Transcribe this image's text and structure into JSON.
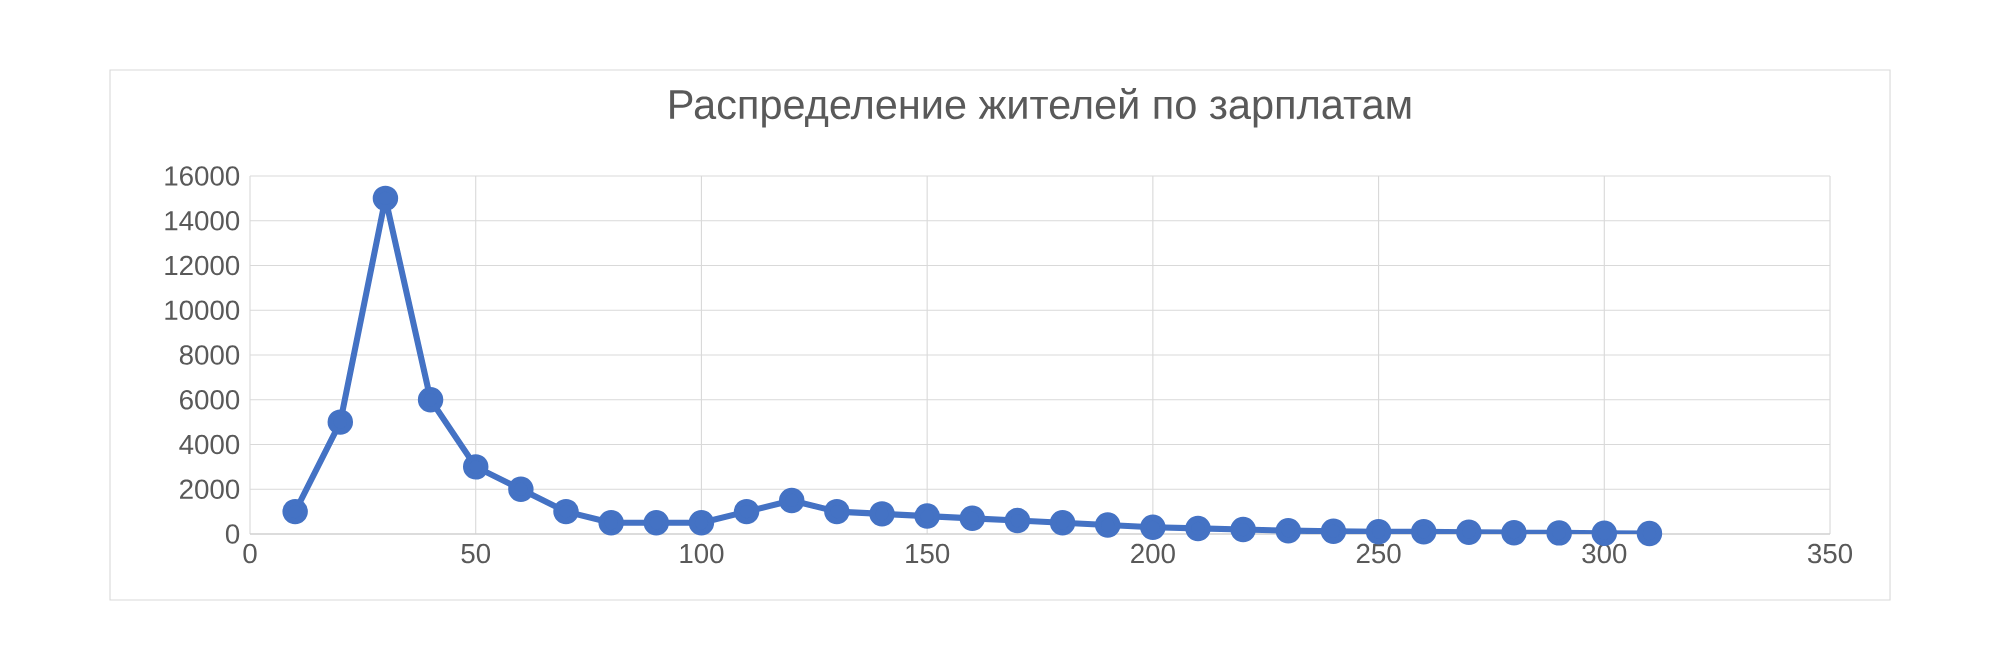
{
  "chart_data": {
    "type": "line",
    "title": "Распределение жителей по зарплатам",
    "x": [
      10,
      20,
      30,
      40,
      50,
      60,
      70,
      80,
      90,
      100,
      110,
      120,
      130,
      140,
      150,
      160,
      170,
      180,
      190,
      200,
      210,
      220,
      230,
      240,
      250,
      260,
      270,
      280,
      290,
      300,
      310
    ],
    "series": [
      {
        "color": "#4472c4",
        "values": [
          1000,
          5000,
          15000,
          6000,
          3000,
          2000,
          1000,
          500,
          500,
          500,
          1000,
          1500,
          1000,
          900,
          800,
          700,
          600,
          500,
          400,
          300,
          250,
          200,
          150,
          120,
          100,
          100,
          80,
          60,
          50,
          30,
          20
        ]
      }
    ],
    "xlim": [
      0,
      350
    ],
    "xticks": [
      0,
      50,
      100,
      150,
      200,
      250,
      300,
      350
    ],
    "ylim": [
      0,
      16000
    ],
    "yticks": [
      0,
      2000,
      4000,
      6000,
      8000,
      10000,
      12000,
      14000,
      16000
    ],
    "grid": true,
    "marker": "circle",
    "line_style": "solid"
  }
}
